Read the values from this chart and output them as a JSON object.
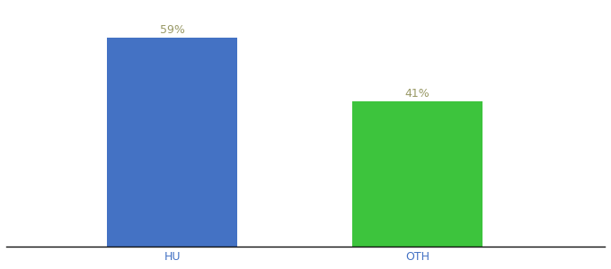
{
  "categories": [
    "HU",
    "OTH"
  ],
  "values": [
    59,
    41
  ],
  "bar_colors": [
    "#4472C4",
    "#3DC43D"
  ],
  "label_color": "#999966",
  "xlabel_color": "#4472C4",
  "ylim": [
    0,
    68
  ],
  "label_fontsize": 9,
  "xlabel_fontsize": 9,
  "background_color": "#ffffff",
  "bar_width": 0.18,
  "x_positions": [
    0.28,
    0.62
  ],
  "xlim": [
    0.05,
    0.88
  ]
}
